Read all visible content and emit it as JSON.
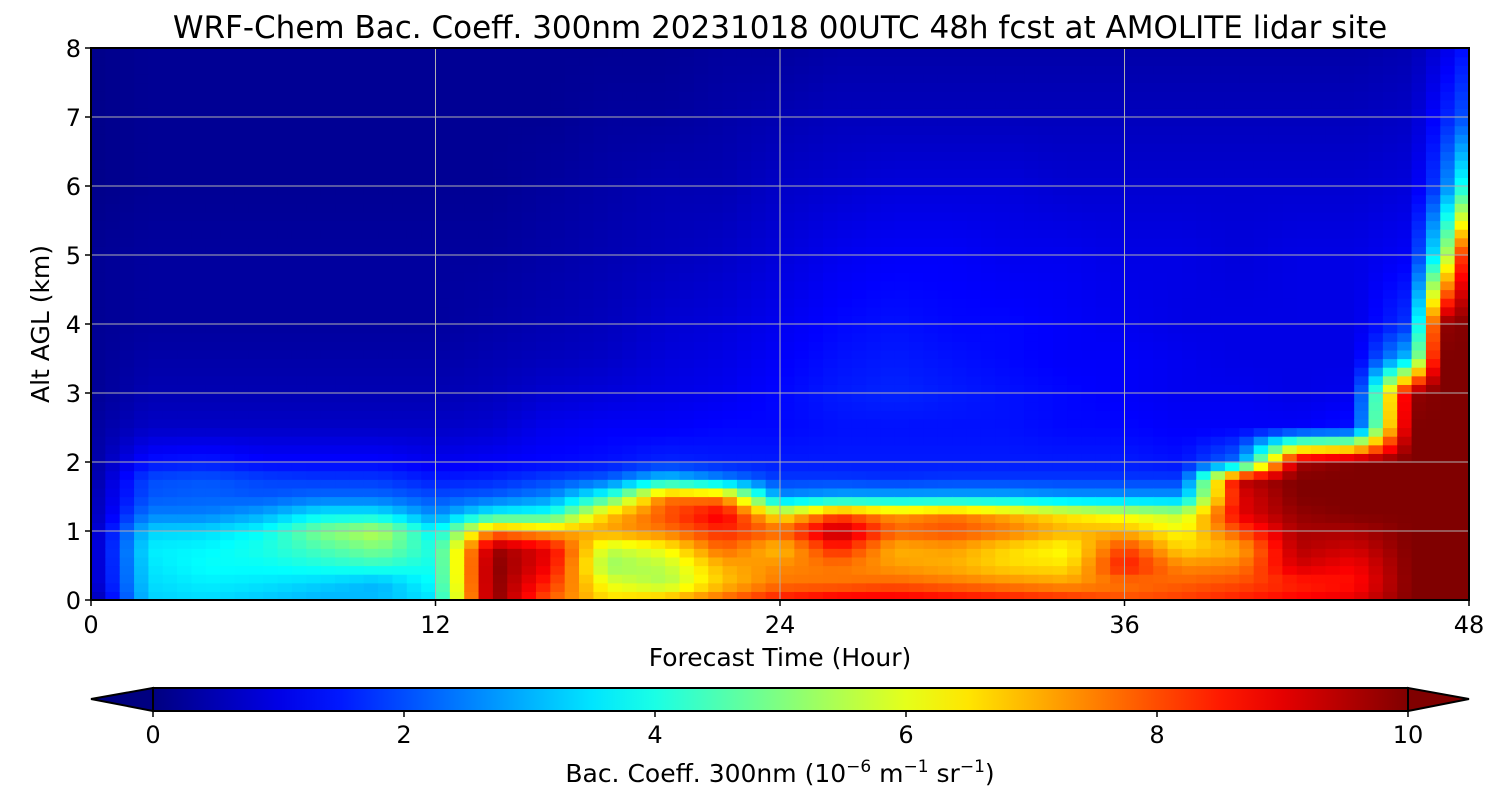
{
  "chart_data": {
    "type": "heatmap",
    "title": "WRF-Chem Bac. Coeff. 300nm  20231018 00UTC 48h fcst at AMOLITE lidar site",
    "xlabel": "Forecast Time (Hour)",
    "ylabel": "Alt AGL (km)",
    "xlim": [
      0,
      48
    ],
    "ylim": [
      0,
      8
    ],
    "x_ticks": [
      0,
      12,
      24,
      36,
      48
    ],
    "y_ticks": [
      0,
      1,
      2,
      3,
      4,
      5,
      6,
      7,
      8
    ],
    "grid": true,
    "colormap": "jet",
    "colorbar": {
      "orientation": "horizontal",
      "placement": "bottom",
      "range": [
        0,
        10
      ],
      "ticks": [
        0,
        2,
        4,
        6,
        8,
        10
      ],
      "extend": "both",
      "label_main": "Bac. Coeff. 300nm  (10",
      "label_sup1": "−6",
      "label_mid": " m",
      "label_sup2": "−1",
      "label_mid2": " sr",
      "label_sup3": "−1",
      "label_end": ")"
    },
    "profile_times": [
      0,
      2,
      4,
      6,
      8,
      10,
      12,
      14,
      16,
      18,
      20,
      22,
      24,
      26,
      28,
      30,
      32,
      34,
      36,
      38,
      40,
      42,
      44,
      46,
      47,
      48
    ],
    "profile_altitudes": [
      0,
      0.25,
      0.5,
      0.75,
      1.0,
      1.25,
      1.5,
      1.75,
      2.0,
      2.5,
      3.0,
      3.5,
      4.0,
      5.0,
      6.0,
      7.0,
      8.0
    ],
    "backscatter_values": [
      [
        0.2,
        0.5,
        0.5,
        0.5,
        0.5,
        0.4,
        0.4,
        0.3,
        0.3,
        0.3,
        0.2,
        0.2,
        0.2,
        0.2,
        0.1,
        0.1,
        0.1
      ],
      [
        3.3,
        3.4,
        3.5,
        3.6,
        3.3,
        2.5,
        2.1,
        2.0,
        1.4,
        0.7,
        0.5,
        0.4,
        0.3,
        0.3,
        0.2,
        0.2,
        0.2
      ],
      [
        3.4,
        3.6,
        3.8,
        3.7,
        3.4,
        2.5,
        2.2,
        2.1,
        1.5,
        0.7,
        0.5,
        0.4,
        0.3,
        0.3,
        0.2,
        0.2,
        0.2
      ],
      [
        3.2,
        3.5,
        3.8,
        4.0,
        3.8,
        2.9,
        2.1,
        1.9,
        1.3,
        0.7,
        0.5,
        0.4,
        0.3,
        0.3,
        0.2,
        0.2,
        0.2
      ],
      [
        3.0,
        3.3,
        4.0,
        4.5,
        5.0,
        3.6,
        2.3,
        1.8,
        1.3,
        0.7,
        0.5,
        0.4,
        0.3,
        0.3,
        0.2,
        0.2,
        0.2
      ],
      [
        3.1,
        3.0,
        4.2,
        5.0,
        5.6,
        3.6,
        2.3,
        1.8,
        1.3,
        0.7,
        0.5,
        0.4,
        0.3,
        0.3,
        0.2,
        0.2,
        0.2
      ],
      [
        3.5,
        3.8,
        3.9,
        4.0,
        3.6,
        2.6,
        2.0,
        1.5,
        1.1,
        0.7,
        0.5,
        0.4,
        0.3,
        0.3,
        0.2,
        0.2,
        0.2
      ],
      [
        10.0,
        10.0,
        10.0,
        9.8,
        7.5,
        3.8,
        2.2,
        1.6,
        1.2,
        0.8,
        0.6,
        0.5,
        0.4,
        0.3,
        0.2,
        0.2,
        0.2
      ],
      [
        7.8,
        8.3,
        8.8,
        8.9,
        7.0,
        4.0,
        2.6,
        1.9,
        1.3,
        1.1,
        0.8,
        0.6,
        0.5,
        0.4,
        0.3,
        0.2,
        0.2
      ],
      [
        6.6,
        6.0,
        5.2,
        5.6,
        7.2,
        6.8,
        4.2,
        2.2,
        1.4,
        1.2,
        0.9,
        0.7,
        0.6,
        0.5,
        0.4,
        0.3,
        0.2
      ],
      [
        7.0,
        5.4,
        5.6,
        6.2,
        7.6,
        8.0,
        7.6,
        3.4,
        1.6,
        1.2,
        1.0,
        0.9,
        0.8,
        0.6,
        0.5,
        0.3,
        0.2
      ],
      [
        7.8,
        6.8,
        7.0,
        7.8,
        8.4,
        9.0,
        7.4,
        2.6,
        1.5,
        1.3,
        1.1,
        1.0,
        0.9,
        0.7,
        0.5,
        0.4,
        0.3
      ],
      [
        8.6,
        7.6,
        7.4,
        6.8,
        7.8,
        6.2,
        2.7,
        1.8,
        1.5,
        1.3,
        1.3,
        1.2,
        1.1,
        0.9,
        0.7,
        0.5,
        0.3
      ],
      [
        9.0,
        7.6,
        7.6,
        8.5,
        9.6,
        8.0,
        3.0,
        1.8,
        1.5,
        1.4,
        1.5,
        1.4,
        1.3,
        1.1,
        0.8,
        0.6,
        0.4
      ],
      [
        9.0,
        7.8,
        7.2,
        7.0,
        7.8,
        7.2,
        3.0,
        1.7,
        1.5,
        1.4,
        1.6,
        1.5,
        1.4,
        1.2,
        0.9,
        0.6,
        0.4
      ],
      [
        8.8,
        7.6,
        7.0,
        7.2,
        8.0,
        7.6,
        3.0,
        1.8,
        1.5,
        1.4,
        1.5,
        1.4,
        1.3,
        1.2,
        0.9,
        0.6,
        0.4
      ],
      [
        8.6,
        7.4,
        6.6,
        6.6,
        7.6,
        7.0,
        3.0,
        1.8,
        1.5,
        1.4,
        1.4,
        1.3,
        1.3,
        1.1,
        0.9,
        0.6,
        0.4
      ],
      [
        8.4,
        7.2,
        6.5,
        6.2,
        7.0,
        6.4,
        2.8,
        1.8,
        1.5,
        1.3,
        1.3,
        1.2,
        1.2,
        1.1,
        0.8,
        0.6,
        0.4
      ],
      [
        8.0,
        7.6,
        8.6,
        8.2,
        7.0,
        6.0,
        2.8,
        1.8,
        1.5,
        1.3,
        1.2,
        1.2,
        1.1,
        1.0,
        0.8,
        0.6,
        0.4
      ],
      [
        8.2,
        7.8,
        7.4,
        6.6,
        6.2,
        5.6,
        2.8,
        1.8,
        1.4,
        1.2,
        1.1,
        1.1,
        1.0,
        1.0,
        0.8,
        0.6,
        0.4
      ],
      [
        8.5,
        8.0,
        7.5,
        7.0,
        8.0,
        9.0,
        9.0,
        9.4,
        2.4,
        1.2,
        1.1,
        1.0,
        1.0,
        0.9,
        0.8,
        0.6,
        0.4
      ],
      [
        8.8,
        8.4,
        9.2,
        9.5,
        9.6,
        9.8,
        10.0,
        10.0,
        9.6,
        1.2,
        1.0,
        1.0,
        1.0,
        1.0,
        0.8,
        0.6,
        0.4
      ],
      [
        9.0,
        8.6,
        8.8,
        9.2,
        9.6,
        10.0,
        10.0,
        10.0,
        10.0,
        1.4,
        1.1,
        1.0,
        1.0,
        1.0,
        0.8,
        0.6,
        0.4
      ],
      [
        10.0,
        10.0,
        10.0,
        10.0,
        10.0,
        10.0,
        10.0,
        10.0,
        10.0,
        10.0,
        9.8,
        3.4,
        1.8,
        1.2,
        0.9,
        0.7,
        0.5
      ],
      [
        10.0,
        10.0,
        10.0,
        10.0,
        10.0,
        10.0,
        10.0,
        10.0,
        10.0,
        10.0,
        10.0,
        10.0,
        9.8,
        4.2,
        2.0,
        1.4,
        0.9
      ],
      [
        10.0,
        10.0,
        10.0,
        10.0,
        10.0,
        10.0,
        10.0,
        10.0,
        10.0,
        10.0,
        10.0,
        10.0,
        10.0,
        9.5,
        4.5,
        2.2,
        1.5
      ]
    ]
  }
}
